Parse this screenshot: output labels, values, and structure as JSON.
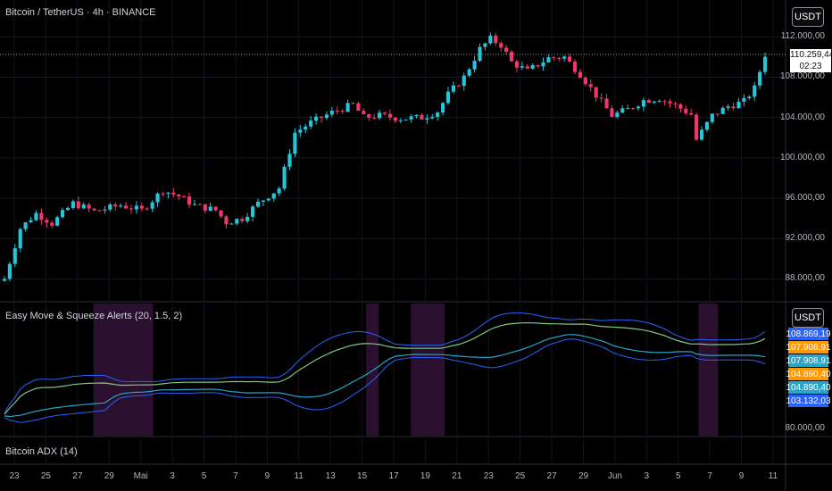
{
  "main_title": "Bitcoin / TetherUS · 4h · BINANCE",
  "indicator_title": "Easy Move & Squeeze Alerts (20, 1.5, 2)",
  "adx_title": "Bitcoin ADX (14)",
  "currency_button": "USDT",
  "indicator_currency_button": "USDT",
  "current_price": "110.259,44",
  "countdown": "02:23",
  "price_axis": [
    "112.000,00",
    "108.000,00",
    "104.000,00",
    "100.000,00",
    "96.000,00",
    "92.000,00",
    "88.000,00"
  ],
  "indicator_axis_bottom": "80.000,00",
  "indicator_labels": [
    {
      "text": "108.869,19",
      "color": "#2962ff"
    },
    {
      "text": "107.908,91",
      "color": "#ff9800"
    },
    {
      "text": "107.908,91",
      "color": "#26a6c9"
    },
    {
      "text": "104.890,40",
      "color": "#ff9800"
    },
    {
      "text": "104.890,40",
      "color": "#26a6c9"
    },
    {
      "text": "103.132,03",
      "color": "#2962ff"
    }
  ],
  "time_axis": [
    "23",
    "25",
    "27",
    "29",
    "Mai",
    "3",
    "5",
    "7",
    "9",
    "11",
    "13",
    "15",
    "17",
    "19",
    "21",
    "23",
    "25",
    "27",
    "29",
    "Jun",
    "3",
    "5",
    "7",
    "9",
    "11"
  ],
  "colors": {
    "up": "#26c6da",
    "down": "#f23669",
    "band_outer": "#2962ff",
    "band_mid": "#81c784",
    "band_line": "#26a6c9",
    "squeeze": "#2a0f2e"
  },
  "chart_data": {
    "type": "candlestick",
    "y_range": [
      86000,
      113000
    ],
    "close_path": [
      [
        0,
        88000
      ],
      [
        3,
        93000
      ],
      [
        6,
        94500
      ],
      [
        9,
        93500
      ],
      [
        13,
        95500
      ],
      [
        17,
        94700
      ],
      [
        22,
        95300
      ],
      [
        26,
        94800
      ],
      [
        30,
        96800
      ],
      [
        33,
        96200
      ],
      [
        36,
        95300
      ],
      [
        40,
        94800
      ],
      [
        42,
        93600
      ],
      [
        45,
        94000
      ],
      [
        48,
        95500
      ],
      [
        52,
        97000
      ],
      [
        55,
        102500
      ],
      [
        58,
        103500
      ],
      [
        62,
        104500
      ],
      [
        66,
        105300
      ],
      [
        68,
        104000
      ],
      [
        71,
        104200
      ],
      [
        75,
        103900
      ],
      [
        79,
        104000
      ],
      [
        82,
        104600
      ],
      [
        84,
        106300
      ],
      [
        87,
        108000
      ],
      [
        90,
        110800
      ],
      [
        92,
        111800
      ],
      [
        94,
        111200
      ],
      [
        96,
        109500
      ],
      [
        99,
        108600
      ],
      [
        103,
        109900
      ],
      [
        106,
        110000
      ],
      [
        109,
        108300
      ],
      [
        112,
        106200
      ],
      [
        115,
        104200
      ],
      [
        118,
        104800
      ],
      [
        121,
        105700
      ],
      [
        124,
        105900
      ],
      [
        127,
        105200
      ],
      [
        130,
        104300
      ],
      [
        131,
        101800
      ],
      [
        134,
        104200
      ],
      [
        137,
        105100
      ],
      [
        140,
        105600
      ],
      [
        142,
        106900
      ],
      [
        144,
        110259
      ]
    ],
    "squeeze_zones_pct": [
      [
        0.119,
        0.195
      ],
      [
        0.466,
        0.482
      ],
      [
        0.523,
        0.566
      ],
      [
        0.889,
        0.914
      ]
    ]
  }
}
